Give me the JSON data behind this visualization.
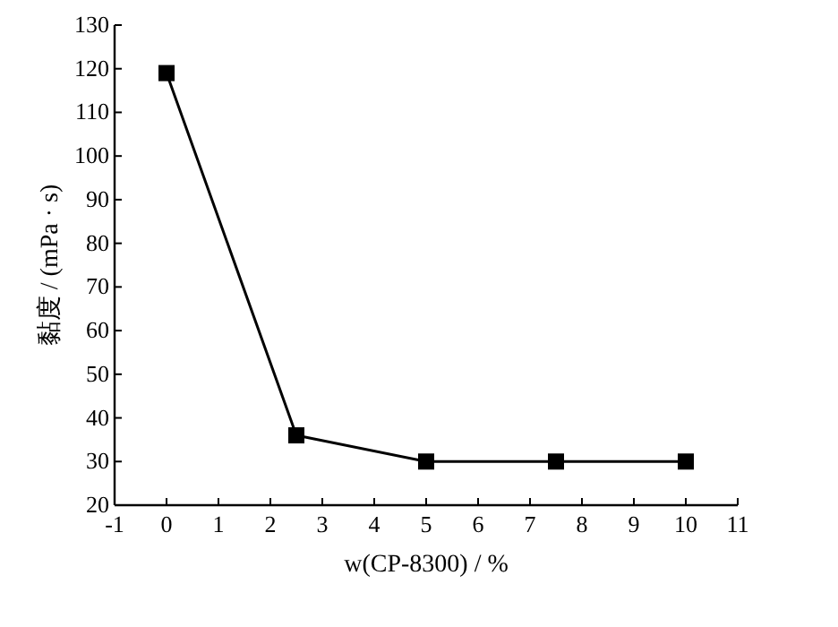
{
  "chart_data": {
    "type": "line",
    "xlabel": "w(CP-8300) / %",
    "ylabel": "黏度 / (mPa · s)",
    "x": [
      0,
      2.5,
      5,
      7.5,
      10
    ],
    "values": [
      119,
      36,
      30,
      30,
      30
    ],
    "color": "#000000",
    "marker": "square",
    "line_style": "solid",
    "xlim": [
      -1,
      11
    ],
    "xticks": [
      -1,
      0,
      1,
      2,
      3,
      4,
      5,
      6,
      7,
      8,
      9,
      10,
      11
    ],
    "ylim": [
      20,
      130
    ],
    "yticks": [
      20,
      30,
      40,
      50,
      60,
      70,
      80,
      90,
      100,
      110,
      120,
      130
    ]
  }
}
